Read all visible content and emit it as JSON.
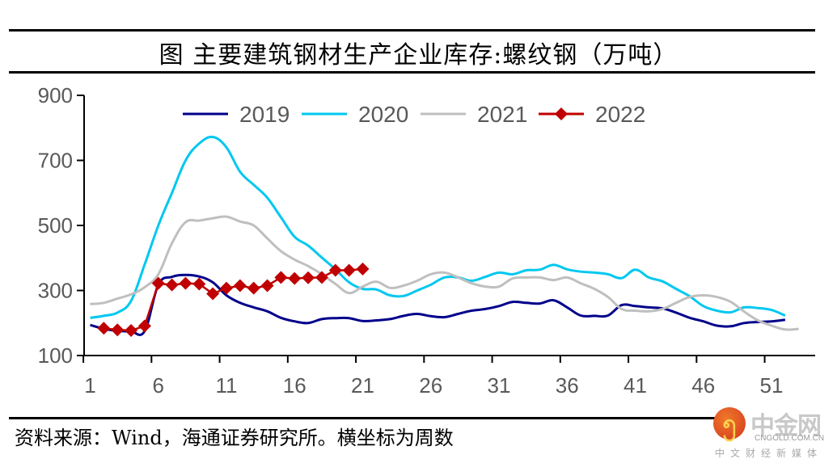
{
  "title": "图 主要建筑钢材生产企业库存:螺纹钢（万吨）",
  "source": "资料来源：Wind，海通证券研究所。横坐标为周数",
  "watermark": {
    "name": "中金网",
    "url": "CNGOLD.COM.CN",
    "tagline": "中文财经新媒体",
    "icon": "cngold-logo-icon"
  },
  "chart_data": {
    "type": "line",
    "title": "主要建筑钢材生产企业库存:螺纹钢（万吨）",
    "xlabel": "周数",
    "ylabel": "万吨",
    "ylim": [
      100,
      900
    ],
    "yticks": [
      100,
      300,
      500,
      700,
      900
    ],
    "xlim": [
      1,
      53
    ],
    "xticks": [
      1,
      6,
      11,
      16,
      21,
      26,
      31,
      36,
      41,
      46,
      51
    ],
    "grid": false,
    "legend_position": "top-center",
    "series": [
      {
        "name": "2019",
        "color": "#00008b",
        "marker": "none",
        "x_start": 1,
        "values": [
          194,
          182,
          176,
          174,
          175,
          318,
          342,
          348,
          343,
          325,
          285,
          262,
          248,
          236,
          216,
          205,
          200,
          212,
          215,
          215,
          206,
          208,
          212,
          222,
          228,
          221,
          218,
          228,
          238,
          243,
          252,
          265,
          262,
          260,
          270,
          248,
          223,
          222,
          223,
          255,
          252,
          248,
          245,
          232,
          216,
          205,
          192,
          190,
          200,
          203,
          205,
          210
        ]
      },
      {
        "name": "2020",
        "color": "#00c8f0",
        "marker": "none",
        "x_start": 1,
        "values": [
          216,
          222,
          232,
          268,
          380,
          500,
          600,
          700,
          752,
          772,
          740,
          665,
          625,
          585,
          525,
          465,
          438,
          401,
          365,
          325,
          305,
          303,
          285,
          283,
          300,
          318,
          340,
          340,
          330,
          342,
          355,
          350,
          362,
          364,
          379,
          365,
          358,
          355,
          350,
          338,
          364,
          340,
          328,
          305,
          282,
          252,
          238,
          233,
          248,
          246,
          240,
          223
        ]
      },
      {
        "name": "2021",
        "color": "#bfbfbf",
        "marker": "none",
        "x_start": 1,
        "values": [
          258,
          262,
          275,
          288,
          310,
          350,
          445,
          510,
          515,
          522,
          527,
          512,
          500,
          460,
          421,
          395,
          375,
          350,
          320,
          292,
          312,
          327,
          308,
          315,
          330,
          350,
          355,
          340,
          322,
          312,
          312,
          337,
          340,
          340,
          332,
          340,
          322,
          305,
          280,
          243,
          238,
          236,
          243,
          262,
          280,
          285,
          280,
          265,
          235,
          208,
          192,
          180,
          182
        ]
      },
      {
        "name": "2022",
        "color": "#c00000",
        "marker": "diamond",
        "x_start": 2,
        "values": [
          184,
          179,
          177,
          191,
          322,
          317,
          322,
          320,
          290,
          307,
          315,
          307,
          315,
          340,
          337,
          339,
          340,
          362,
          362,
          366
        ]
      }
    ]
  }
}
